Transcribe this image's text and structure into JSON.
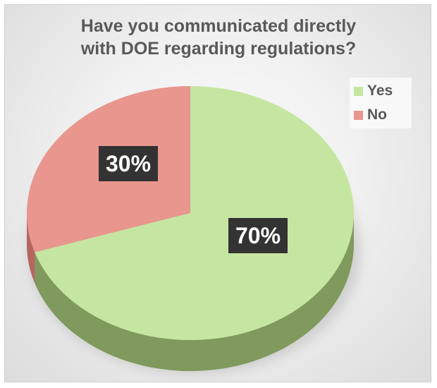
{
  "chart_data": {
    "type": "pie",
    "title_lines": [
      "Have you communicated directly",
      "with DOE regarding regulations?"
    ],
    "slices": [
      {
        "label": "Yes",
        "value": 70,
        "display": "70%",
        "color": "#c5e6a0",
        "side_color": "#7f9a5c"
      },
      {
        "label": "No",
        "value": 30,
        "display": "30%",
        "color": "#e8968e",
        "side_color": "#b5655e"
      }
    ],
    "legend_position": "top-right",
    "data_label_style": {
      "background": "#333333",
      "text_color": "#ffffff"
    }
  }
}
